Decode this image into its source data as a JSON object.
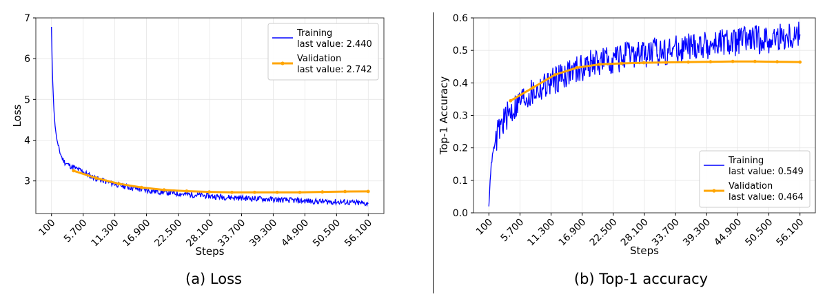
{
  "captions": [
    "(a) Loss",
    "(b) Top-1 accuracy"
  ],
  "colors": {
    "training": "#0000ff",
    "validation": "#ffa500",
    "grid": "#e6e6e6",
    "axes": "#333333"
  },
  "chart_data": [
    {
      "type": "line",
      "caption": "(a) Loss",
      "xlabel": "Steps",
      "ylabel": "Loss",
      "xlim": [
        100,
        56100
      ],
      "ylim": [
        2.2,
        7.0
      ],
      "xticks": [
        100,
        5700,
        11300,
        16900,
        22500,
        28100,
        33700,
        39300,
        44900,
        50500,
        56100
      ],
      "xtick_labels": [
        "100",
        "5.700",
        "11.300",
        "16.900",
        "22.500",
        "28.100",
        "33.700",
        "39.300",
        "44.900",
        "50.500",
        "56.100"
      ],
      "yticks": [
        3,
        4,
        5,
        6,
        7
      ],
      "grid": true,
      "legend_position": "top-right",
      "series": [
        {
          "name": "Training",
          "last_value_label": "last value: 2.440",
          "color": "#0000ff",
          "x": [
            100,
            200,
            300,
            500,
            700,
            1000,
            1300,
            1600,
            2000,
            2500,
            3000,
            4000,
            5000,
            6000,
            7000,
            8000,
            10000,
            12000,
            14000,
            16000,
            18000,
            20000,
            22500,
            25000,
            28000,
            31000,
            34000,
            37000,
            40000,
            43000,
            46000,
            49000,
            52000,
            54000,
            56100
          ],
          "y": [
            6.78,
            6.0,
            5.5,
            4.8,
            4.4,
            4.05,
            3.85,
            3.7,
            3.55,
            3.45,
            3.4,
            3.33,
            3.27,
            3.2,
            3.12,
            3.06,
            2.97,
            2.9,
            2.84,
            2.79,
            2.75,
            2.72,
            2.69,
            2.66,
            2.63,
            2.6,
            2.58,
            2.56,
            2.54,
            2.52,
            2.5,
            2.49,
            2.48,
            2.46,
            2.44
          ]
        },
        {
          "name": "Validation",
          "last_value_label": "last value: 2.742",
          "color": "#ffa500",
          "x": [
            4000,
            8000,
            12000,
            16000,
            20000,
            24000,
            28000,
            32000,
            36000,
            40000,
            44000,
            48000,
            52000,
            56100
          ],
          "y": [
            3.25,
            3.07,
            2.93,
            2.84,
            2.78,
            2.75,
            2.73,
            2.72,
            2.72,
            2.72,
            2.72,
            2.73,
            2.74,
            2.742
          ]
        }
      ]
    },
    {
      "type": "line",
      "caption": "(b) Top-1 accuracy",
      "xlabel": "Steps",
      "ylabel": "Top-1 Accuracy",
      "xlim": [
        100,
        56100
      ],
      "ylim": [
        0.0,
        0.6
      ],
      "xticks": [
        100,
        5700,
        11300,
        16900,
        22500,
        28100,
        33700,
        39300,
        44900,
        50500,
        56100
      ],
      "xtick_labels": [
        "100",
        "5.700",
        "11.300",
        "16.900",
        "22.500",
        "28.100",
        "33.700",
        "39.300",
        "44.900",
        "50.500",
        "56.100"
      ],
      "yticks": [
        0.0,
        0.1,
        0.2,
        0.3,
        0.4,
        0.5,
        0.6
      ],
      "ytick_labels": [
        "0.0",
        "0.1",
        "0.2",
        "0.3",
        "0.4",
        "0.5",
        "0.6"
      ],
      "grid": true,
      "legend_position": "bottom-right",
      "series": [
        {
          "name": "Training",
          "last_value_label": "last value: 0.549",
          "color": "#0000ff",
          "x": [
            100,
            300,
            600,
            1000,
            1500,
            2000,
            3000,
            4000,
            5000,
            6000,
            8000,
            10000,
            12000,
            14000,
            16000,
            18000,
            20000,
            23000,
            26000,
            30000,
            34000,
            38000,
            42000,
            46000,
            50000,
            53000,
            56100
          ],
          "y": [
            0.02,
            0.1,
            0.16,
            0.2,
            0.23,
            0.26,
            0.29,
            0.31,
            0.33,
            0.35,
            0.37,
            0.39,
            0.41,
            0.43,
            0.44,
            0.455,
            0.465,
            0.475,
            0.485,
            0.495,
            0.505,
            0.515,
            0.52,
            0.53,
            0.535,
            0.54,
            0.549
          ]
        },
        {
          "name": "Validation",
          "last_value_label": "last value: 0.464",
          "color": "#ffa500",
          "x": [
            4000,
            8000,
            12000,
            16000,
            20000,
            24000,
            28000,
            32000,
            36000,
            40000,
            44000,
            48000,
            52000,
            56100
          ],
          "y": [
            0.345,
            0.385,
            0.425,
            0.447,
            0.457,
            0.46,
            0.462,
            0.463,
            0.464,
            0.465,
            0.466,
            0.466,
            0.465,
            0.464
          ]
        }
      ]
    }
  ]
}
